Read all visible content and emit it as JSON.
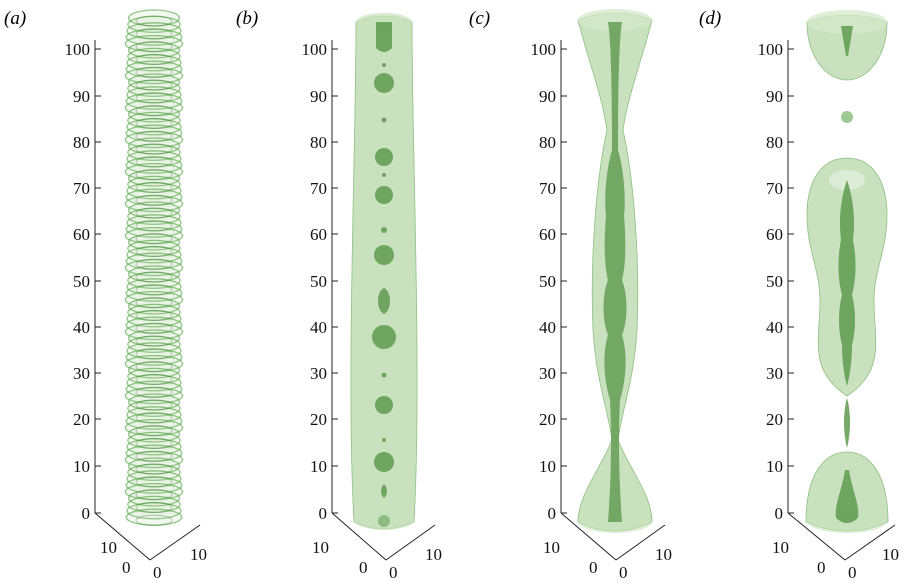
{
  "figure": {
    "panels": [
      {
        "label": "(a)",
        "description": "tightly wound concentric rings forming a column"
      },
      {
        "label": "(b)",
        "description": "cylinder with a chain of small interior droplets"
      },
      {
        "label": "(c)",
        "description": "necked column with connected interior beads"
      },
      {
        "label": "(d)",
        "description": "broken column: top cap, satellite drop, central bulb, bottom cap"
      }
    ],
    "vertical_axis_ticks": [
      "0",
      "10",
      "20",
      "30",
      "40",
      "50",
      "60",
      "70",
      "80",
      "90",
      "100"
    ],
    "base_axis_ticks": {
      "left_ten": "10",
      "left_zero": "0",
      "right_zero": "0",
      "right_ten": "10"
    },
    "colors": {
      "outer_fill": "#a8cf98",
      "inner_fill": "#5e9a4e",
      "ring_stroke": "#3c9a2c",
      "axis": "#222222"
    }
  }
}
